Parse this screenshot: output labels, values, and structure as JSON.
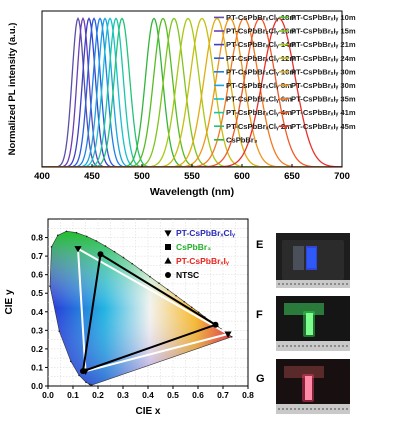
{
  "panel_labels": [
    "E",
    "F",
    "G"
  ],
  "chart_data": [
    {
      "type": "line",
      "xlabel": "Wavelength (nm)",
      "ylabel": "Normalized PL intensity (a.u.)",
      "xlim": [
        400,
        700
      ],
      "ylim": [
        0,
        1.05
      ],
      "xticks": [
        400,
        450,
        500,
        550,
        600,
        650,
        700
      ],
      "legend_placement": "top-right",
      "series": [
        {
          "name": "PT-CsPbBrₓClᵧ 18m",
          "peak": 436,
          "fwhm": 14,
          "color": "#5b4fa8"
        },
        {
          "name": "PT-CsPbBrₓClᵧ 16m",
          "peak": 441,
          "fwhm": 14,
          "color": "#6a3fb5"
        },
        {
          "name": "PT-CsPbBrₓClᵧ 14m",
          "peak": 447,
          "fwhm": 15,
          "color": "#3d3fc4"
        },
        {
          "name": "PT-CsPbBrₓClᵧ 12m",
          "peak": 452,
          "fwhm": 15,
          "color": "#2a5be0"
        },
        {
          "name": "PT-CsPbBrₓClᵧ 10m",
          "peak": 458,
          "fwhm": 16,
          "color": "#1d7fe6"
        },
        {
          "name": "PT-CsPbBrₓClᵧ 8m",
          "peak": 463,
          "fwhm": 16,
          "color": "#1aa3e0"
        },
        {
          "name": "PT-CsPbBrₓClᵧ 6m",
          "peak": 468,
          "fwhm": 17,
          "color": "#17bfd0"
        },
        {
          "name": "PT-CsPbBrₓClᵧ 4m",
          "peak": 474,
          "fwhm": 17,
          "color": "#19c7a8"
        },
        {
          "name": "PT-CsPbBrₓClᵧ 2m",
          "peak": 480,
          "fwhm": 18,
          "color": "#23c27a"
        },
        {
          "name": "CsPbBr₃",
          "peak": 512,
          "fwhm": 20,
          "color": "#33b53a"
        },
        {
          "name": "PT-CsPbBrₓIᵧ 10m",
          "peak": 521,
          "fwhm": 22,
          "color": "#56bc24"
        },
        {
          "name": "PT-CsPbBrₓIᵧ 15m",
          "peak": 532,
          "fwhm": 24,
          "color": "#7fc41c"
        },
        {
          "name": "PT-CsPbBrₓIᵧ 21m",
          "peak": 546,
          "fwhm": 26,
          "color": "#a7c814"
        },
        {
          "name": "PT-CsPbBrₓIᵧ 24m",
          "peak": 560,
          "fwhm": 28,
          "color": "#c6be10"
        },
        {
          "name": "PT-CsPbBrₓIᵧ 30m",
          "peak": 575,
          "fwhm": 30,
          "color": "#dfae10"
        },
        {
          "name": "PT-CsPbBrₓIᵧ 30m",
          "peak": 588,
          "fwhm": 32,
          "color": "#f0951a"
        },
        {
          "name": "PT-CsPbBrₓIᵧ 35m",
          "peak": 602,
          "fwhm": 34,
          "color": "#f27a22"
        },
        {
          "name": "PT-CsPbBrₓIᵧ 41m",
          "peak": 618,
          "fwhm": 36,
          "color": "#ee5a28"
        },
        {
          "name": "PT-CsPbBrₓIᵧ 45m",
          "peak": 637,
          "fwhm": 38,
          "color": "#e8322b"
        }
      ]
    },
    {
      "type": "scatter",
      "xlabel": "CIE x",
      "ylabel": "CIE y",
      "xlim": [
        0.0,
        0.8
      ],
      "ylim": [
        0.0,
        0.9
      ],
      "xticks": [
        0.0,
        0.1,
        0.2,
        0.3,
        0.4,
        0.5,
        0.6,
        0.7,
        0.8
      ],
      "yticks": [
        0.0,
        0.1,
        0.2,
        0.3,
        0.4,
        0.5,
        0.6,
        0.7,
        0.8
      ],
      "legend_placement": "top-right",
      "legend": [
        {
          "label": "PT-CsPbBrₓClᵧ",
          "marker": "triangle-down",
          "color": "#2b2bb8"
        },
        {
          "label": "CsPbBr₃",
          "marker": "square",
          "color": "#24b02a"
        },
        {
          "label": "PT-CsPbBrₓIᵧ",
          "marker": "triangle-up",
          "color": "#e8251f"
        },
        {
          "label": "NTSC",
          "marker": "circle",
          "color": "#000000"
        }
      ],
      "triangles": [
        {
          "name": "PT-CsPbBrₓClᵧ",
          "stroke": "#ffffff",
          "marker": "triangle-down",
          "points": [
            [
              0.12,
              0.74
            ],
            [
              0.72,
              0.28
            ],
            [
              0.15,
              0.08
            ]
          ]
        },
        {
          "name": "NTSC",
          "stroke": "#000000",
          "marker": "circle",
          "points": [
            [
              0.21,
              0.71
            ],
            [
              0.67,
              0.33
            ],
            [
              0.14,
              0.08
            ]
          ]
        }
      ],
      "locus": [
        [
          0.175,
          0.005
        ],
        [
          0.172,
          0.005
        ],
        [
          0.166,
          0.009
        ],
        [
          0.152,
          0.02
        ],
        [
          0.124,
          0.058
        ],
        [
          0.091,
          0.133
        ],
        [
          0.045,
          0.295
        ],
        [
          0.008,
          0.538
        ],
        [
          0.014,
          0.75
        ],
        [
          0.039,
          0.812
        ],
        [
          0.074,
          0.834
        ],
        [
          0.114,
          0.826
        ],
        [
          0.155,
          0.806
        ],
        [
          0.193,
          0.782
        ],
        [
          0.23,
          0.754
        ],
        [
          0.266,
          0.724
        ],
        [
          0.302,
          0.692
        ],
        [
          0.337,
          0.659
        ],
        [
          0.373,
          0.624
        ],
        [
          0.408,
          0.589
        ],
        [
          0.444,
          0.554
        ],
        [
          0.479,
          0.52
        ],
        [
          0.512,
          0.487
        ],
        [
          0.545,
          0.454
        ],
        [
          0.575,
          0.424
        ],
        [
          0.603,
          0.397
        ],
        [
          0.627,
          0.372
        ],
        [
          0.648,
          0.351
        ],
        [
          0.666,
          0.334
        ],
        [
          0.68,
          0.32
        ],
        [
          0.691,
          0.309
        ],
        [
          0.735,
          0.265
        ]
      ]
    }
  ]
}
